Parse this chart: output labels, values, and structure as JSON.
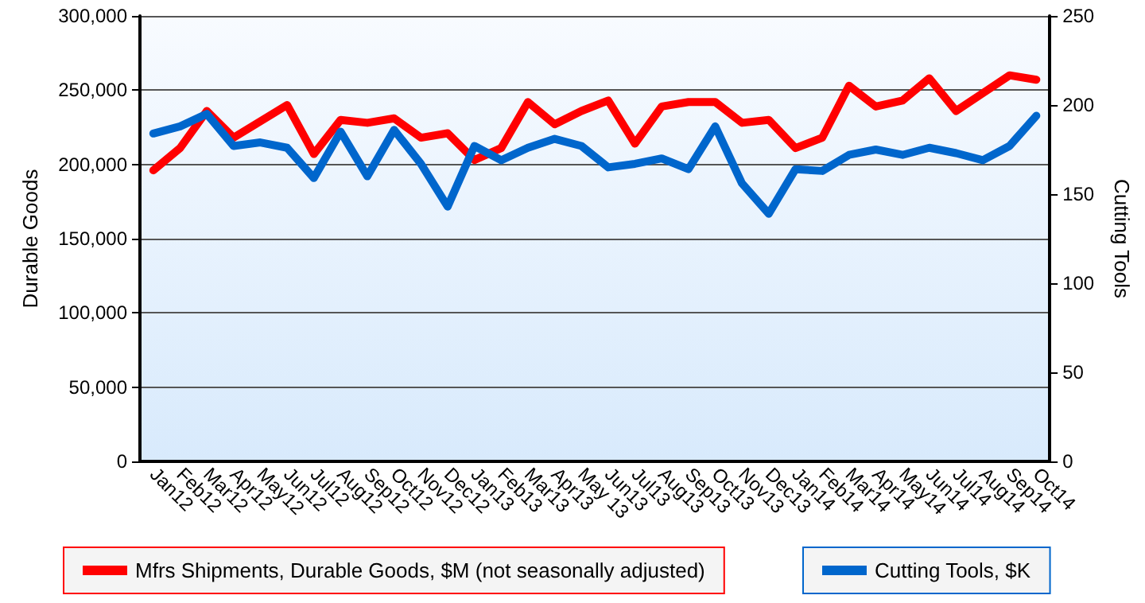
{
  "chart_data": {
    "type": "line",
    "ylabel": "Durable Goods",
    "y2label": "Cutting Tools",
    "categories": [
      "Jan12",
      "Feb12",
      "Mar12",
      "Apr12",
      "May12",
      "Jun12",
      "Jul12",
      "Aug12",
      "Sep12",
      "Oct12",
      "Nov12",
      "Dec12",
      "Jan13",
      "Feb13",
      "Mar13",
      "Apr13",
      "May 13",
      "Jun13",
      "Jul13",
      "Aug13",
      "Sep13",
      "Oct13",
      "Nov13",
      "Dec13",
      "Jan14",
      "Feb14",
      "Mar14",
      "Apr14",
      "May14",
      "Jun14",
      "Jul14",
      "Aug14",
      "Sep14",
      "Oct14"
    ],
    "series": [
      {
        "name": "Mfrs Shipments, Durable Goods, $M (not seasonally adjusted)",
        "color": "#ff0000",
        "values": [
          196000,
          211000,
          236000,
          218000,
          229000,
          240000,
          207000,
          230000,
          228000,
          231000,
          218000,
          221000,
          203000,
          211000,
          242000,
          227000,
          236000,
          243000,
          214000,
          239000,
          242000,
          242000,
          228000,
          230000,
          211000,
          218000,
          253000,
          239000,
          243000,
          258000,
          236000,
          248000,
          260000,
          257000
        ]
      },
      {
        "name": "Cutting Tools, $K",
        "color": "#0066cc",
        "axis": "y2",
        "values": [
          184,
          188,
          195,
          177,
          179,
          176,
          159,
          185,
          160,
          186,
          167,
          143,
          177,
          169,
          176,
          181,
          177,
          165,
          167,
          170,
          164,
          188,
          156,
          139,
          164,
          163,
          172,
          175,
          172,
          176,
          173,
          169,
          177,
          194
        ]
      }
    ],
    "ylim": [
      0,
      300000
    ],
    "yticks": [
      {
        "value": 0,
        "label": "0"
      },
      {
        "value": 50000,
        "label": "50,000"
      },
      {
        "value": 100000,
        "label": "100,000"
      },
      {
        "value": 150000,
        "label": "150,000"
      },
      {
        "value": 200000,
        "label": "200,000"
      },
      {
        "value": 250000,
        "label": "250,000"
      },
      {
        "value": 300000,
        "label": "300,000"
      }
    ],
    "y2lim": [
      0,
      250
    ],
    "y2ticks": [
      0,
      50,
      100,
      150,
      200,
      250
    ],
    "grid": "y",
    "legend": "bottom",
    "marker": "none",
    "line_style": "solid"
  }
}
